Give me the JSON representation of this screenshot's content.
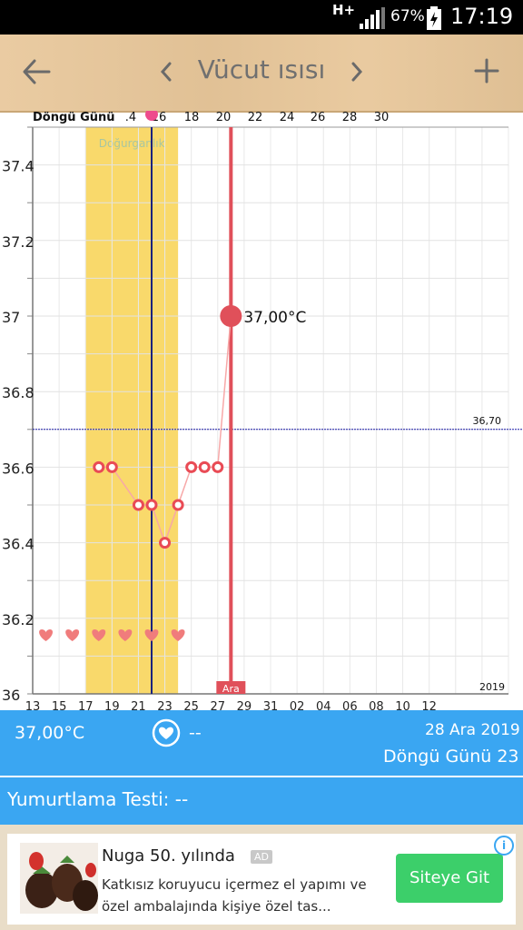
{
  "status_bar": {
    "network": "H+",
    "battery": "67%",
    "time": "17:19"
  },
  "header": {
    "title": "Vücut ısısı",
    "back_icon": "arrow-left-icon",
    "prev_icon": "chevron-left-icon",
    "next_icon": "chevron-right-icon",
    "add_icon": "plus-icon"
  },
  "chart_data": {
    "type": "line",
    "top_axis_title": "Döngü Günü",
    "top_axis_ticks": [
      ".4",
      "16",
      "18",
      "20",
      "22",
      "24",
      "26",
      "28",
      "30"
    ],
    "x_tick_labels": [
      "13",
      "15",
      "17",
      "19",
      "21",
      "23",
      "25",
      "27",
      "29",
      "31",
      "02",
      "04",
      "06",
      "08",
      "10",
      "12"
    ],
    "x_day_range": [
      13,
      49
    ],
    "ylabel_ticks": [
      "37.4",
      "37.2",
      "37",
      "36.8",
      "36.6",
      "36.4",
      "36.2",
      "36"
    ],
    "ylim": [
      36.0,
      37.5
    ],
    "fertile_window_label": "Doğurganlık",
    "fertile_window": [
      17,
      24
    ],
    "ovulation_day": 22,
    "coverline": 36.7,
    "coverline_label": "36,70",
    "current_day": 28,
    "current_day_label": "Ara",
    "year_label": "2019",
    "series": [
      {
        "days": [
          18,
          19,
          21,
          22,
          23,
          24,
          25,
          26,
          27,
          28
        ],
        "values": [
          36.6,
          36.6,
          36.5,
          36.5,
          36.4,
          36.5,
          36.6,
          36.6,
          36.6,
          37.0
        ]
      }
    ],
    "highlight_label": "37,00°C",
    "heart_days": [
      14,
      16,
      18,
      20,
      22,
      24
    ],
    "colors": {
      "line": "#f7a8a8",
      "point": "#e94b55",
      "fertile": "#f9d96b",
      "ovulation": "#1a237e",
      "today": "#e0505a",
      "coverline": "#1a1aa8",
      "heart": "#f07c7c"
    }
  },
  "info_bar": {
    "temperature": "37,00°C",
    "intercourse_value": "--",
    "date": "28 Ara 2019",
    "cycle_day": "Döngü Günü 23"
  },
  "ovulation_test": {
    "label": "Yumurtlama Testi: --"
  },
  "ad": {
    "title": "Nuga 50. yılında",
    "badge": "AD",
    "description": "Katkısız koruyucu içermez el yapımı ve özel ambalajında kişiye özel tas...",
    "button": "Siteye Git",
    "info_icon": "i"
  }
}
